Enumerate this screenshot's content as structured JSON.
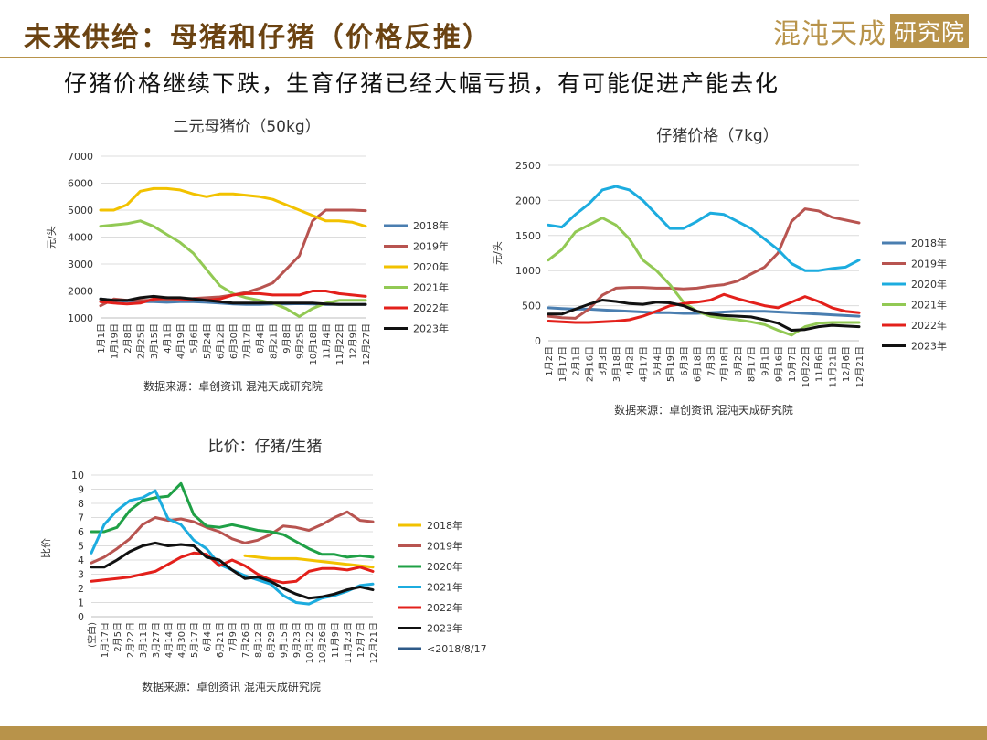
{
  "header": {
    "title": "未来供给：母猪和仔猪（价格反推）",
    "brand": "混沌天成",
    "brand_badge": "研究院",
    "subtitle": "仔猪价格继续下跌，生育仔猪已经大幅亏损，有可能促进产能去化"
  },
  "colors": {
    "accent": "#b8934a",
    "title": "#6b4312"
  },
  "chart_data": [
    {
      "type": "line",
      "title": "二元母猪价（50kg）",
      "ylabel": "元/头",
      "ylim": [
        1000,
        7000
      ],
      "yticks": [
        1000,
        2000,
        3000,
        4000,
        5000,
        6000,
        7000
      ],
      "x_ticks": [
        "1月1日",
        "1月19日",
        "2月8日",
        "2月25日",
        "3月15日",
        "4月1日",
        "4月19日",
        "5月6日",
        "5月24日",
        "6月12日",
        "6月30日",
        "7月17日",
        "8月4日",
        "8月21日",
        "9月8日",
        "9月25日",
        "10月18日",
        "11月4日",
        "11月22日",
        "12月9日",
        "12月27日"
      ],
      "source": "数据来源：卓创资讯 混沌天成研究院",
      "legend_position": "right",
      "series": [
        {
          "name": "2018年",
          "color": "#4a7eb0",
          "values": [
            1700,
            1650,
            1620,
            1600,
            1600,
            1580,
            1600,
            1600,
            1580,
            1550,
            1520,
            1500,
            1500,
            1520,
            1520,
            1530,
            1520,
            1500,
            1500,
            1500,
            1500
          ]
        },
        {
          "name": "2019年",
          "color": "#b85450",
          "values": [
            1450,
            1700,
            1650,
            1650,
            1650,
            1680,
            1700,
            1720,
            1750,
            1780,
            1850,
            1950,
            2100,
            2300,
            2800,
            3300,
            4600,
            5000,
            5000,
            5000,
            4980
          ]
        },
        {
          "name": "2020年",
          "color": "#f2c200",
          "values": [
            5000,
            5000,
            5200,
            5700,
            5800,
            5800,
            5750,
            5600,
            5500,
            5600,
            5600,
            5550,
            5500,
            5400,
            5200,
            5000,
            4800,
            4600,
            4600,
            4550,
            4400
          ]
        },
        {
          "name": "2021年",
          "color": "#92c954",
          "values": [
            4400,
            4450,
            4500,
            4600,
            4400,
            4100,
            3800,
            3400,
            2800,
            2200,
            1900,
            1750,
            1650,
            1550,
            1350,
            1050,
            1350,
            1550,
            1650,
            1650,
            1650
          ]
        },
        {
          "name": "2022年",
          "color": "#e3201b",
          "values": [
            1600,
            1550,
            1520,
            1550,
            1700,
            1750,
            1700,
            1680,
            1650,
            1700,
            1850,
            1900,
            1900,
            1850,
            1850,
            1850,
            2000,
            2000,
            1900,
            1850,
            1800
          ]
        },
        {
          "name": "2023年",
          "color": "#111111",
          "values": [
            1700,
            1650,
            1650,
            1750,
            1800,
            1750,
            1750,
            1700,
            1650,
            1600,
            1550,
            1550,
            1550,
            1550,
            1550,
            1550,
            1550,
            1520,
            1500,
            1500,
            1500
          ]
        }
      ]
    },
    {
      "type": "line",
      "title": "仔猪价格（7kg）",
      "ylabel": "元/头",
      "ylim": [
        0,
        2500
      ],
      "yticks": [
        0,
        500,
        1000,
        1500,
        2000,
        2500
      ],
      "x_ticks": [
        "1月2日",
        "1月17日",
        "2月1日",
        "2月16日",
        "3月3日",
        "3月18日",
        "4月2日",
        "4月17日",
        "5月4日",
        "5月19日",
        "6月3日",
        "6月18日",
        "7月3日",
        "7月18日",
        "8月2日",
        "8月17日",
        "9月1日",
        "9月16日",
        "10月7日",
        "10月22日",
        "11月6日",
        "11月21日",
        "12月6日",
        "12月21日"
      ],
      "source": "数据来源：卓创资讯 混沌天成研究院",
      "legend_position": "right",
      "series": [
        {
          "name": "2018年",
          "color": "#4a7eb0",
          "values": [
            470,
            460,
            450,
            450,
            440,
            430,
            420,
            410,
            400,
            400,
            390,
            390,
            400,
            410,
            420,
            420,
            420,
            410,
            400,
            390,
            380,
            370,
            360,
            350
          ]
        },
        {
          "name": "2019年",
          "color": "#b85450",
          "values": [
            350,
            330,
            320,
            450,
            650,
            750,
            760,
            760,
            750,
            750,
            740,
            750,
            780,
            800,
            850,
            950,
            1050,
            1250,
            1700,
            1880,
            1850,
            1760,
            1720,
            1680
          ]
        },
        {
          "name": "2020年",
          "color": "#1cacdf",
          "values": [
            1650,
            1620,
            1800,
            1950,
            2150,
            2200,
            2150,
            2000,
            1800,
            1600,
            1600,
            1700,
            1820,
            1800,
            1700,
            1600,
            1450,
            1300,
            1100,
            1000,
            1000,
            1030,
            1050,
            1150
          ]
        },
        {
          "name": "2021年",
          "color": "#92c954",
          "values": [
            1150,
            1300,
            1550,
            1650,
            1750,
            1650,
            1450,
            1150,
            1000,
            800,
            550,
            420,
            350,
            320,
            300,
            270,
            230,
            150,
            80,
            200,
            250,
            260,
            260,
            260
          ]
        },
        {
          "name": "2022年",
          "color": "#e3201b",
          "values": [
            280,
            270,
            260,
            260,
            270,
            280,
            300,
            350,
            420,
            500,
            530,
            550,
            580,
            660,
            600,
            550,
            500,
            470,
            550,
            630,
            560,
            470,
            420,
            400
          ]
        },
        {
          "name": "2023年",
          "color": "#111111",
          "values": [
            380,
            380,
            450,
            520,
            580,
            560,
            530,
            520,
            550,
            540,
            500,
            420,
            380,
            360,
            350,
            340,
            300,
            250,
            150,
            160,
            200,
            220,
            210,
            200
          ]
        }
      ]
    },
    {
      "type": "line",
      "title": "比价：仔猪/生猪",
      "ylabel": "比价",
      "ylim": [
        0,
        10
      ],
      "yticks": [
        0,
        1,
        2,
        3,
        4,
        5,
        6,
        7,
        8,
        9,
        10
      ],
      "x_ticks": [
        "(空白)",
        "1月17日",
        "2月5日",
        "2月22日",
        "3月11日",
        "3月27日",
        "4月14日",
        "4月30日",
        "5月17日",
        "6月4日",
        "6月21日",
        "7月9日",
        "7月26日",
        "8月12日",
        "8月29日",
        "9月15日",
        "9月23日",
        "10月12日",
        "10月26日",
        "11月9日",
        "11月23日",
        "12月7日",
        "12月21日"
      ],
      "source": "数据来源：卓创资讯 混沌天成研究院",
      "legend_position": "right",
      "series": [
        {
          "name": "2018年",
          "color": "#f2c200",
          "values": [
            null,
            null,
            null,
            null,
            null,
            null,
            null,
            null,
            null,
            null,
            null,
            null,
            4.3,
            4.2,
            4.1,
            4.1,
            4.1,
            4.0,
            3.9,
            3.8,
            3.7,
            3.6,
            3.5
          ]
        },
        {
          "name": "2019年",
          "color": "#b85450",
          "values": [
            3.8,
            4.2,
            4.8,
            5.5,
            6.5,
            7.0,
            6.8,
            6.9,
            6.7,
            6.3,
            6.0,
            5.5,
            5.2,
            5.4,
            5.8,
            6.4,
            6.3,
            6.1,
            6.5,
            7.0,
            7.4,
            6.8,
            6.7
          ]
        },
        {
          "name": "2020年",
          "color": "#1fa046",
          "values": [
            6.0,
            6.0,
            6.3,
            7.5,
            8.2,
            8.4,
            8.5,
            9.4,
            7.2,
            6.4,
            6.3,
            6.5,
            6.3,
            6.1,
            6.0,
            5.8,
            5.3,
            4.8,
            4.4,
            4.4,
            4.2,
            4.3,
            4.2
          ]
        },
        {
          "name": "2021年",
          "color": "#1cacdf",
          "values": [
            4.5,
            6.5,
            7.5,
            8.2,
            8.4,
            8.9,
            6.9,
            6.5,
            5.4,
            4.8,
            3.7,
            3.3,
            2.9,
            2.6,
            2.3,
            1.5,
            1.0,
            0.9,
            1.3,
            1.5,
            1.8,
            2.2,
            2.3
          ]
        },
        {
          "name": "2022年",
          "color": "#e3201b",
          "values": [
            2.5,
            2.6,
            2.7,
            2.8,
            3.0,
            3.2,
            3.7,
            4.2,
            4.5,
            4.4,
            3.6,
            4.0,
            3.6,
            3.0,
            2.6,
            2.4,
            2.5,
            3.2,
            3.4,
            3.4,
            3.3,
            3.5,
            3.2
          ]
        },
        {
          "name": "2023年",
          "color": "#111111",
          "values": [
            3.5,
            3.5,
            4.0,
            4.6,
            5.0,
            5.2,
            5.0,
            5.1,
            5.0,
            4.2,
            4.0,
            3.3,
            2.7,
            2.8,
            2.5,
            2.0,
            1.6,
            1.3,
            1.4,
            1.6,
            1.9,
            2.1,
            1.9
          ]
        },
        {
          "name": "<2018/8/17",
          "color": "#2e5a88",
          "values": []
        }
      ]
    }
  ]
}
